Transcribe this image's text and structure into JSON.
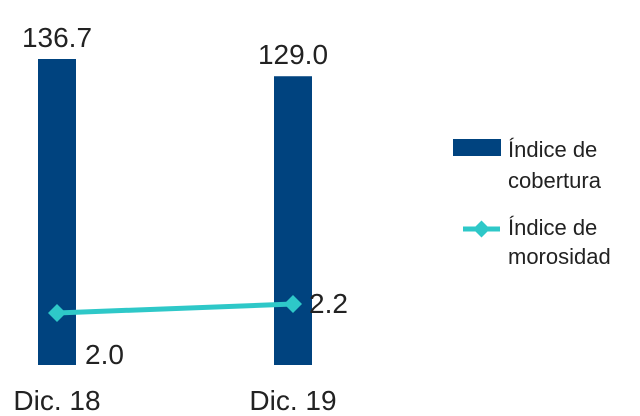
{
  "chart_data": {
    "type": "bar",
    "categories": [
      "Dic. 18",
      "Dic. 19"
    ],
    "series": [
      {
        "name": "Índice de cobertura",
        "kind": "bar",
        "values": [
          136.7,
          129.0
        ],
        "labels": [
          "136.7",
          "129.0"
        ],
        "color": "#00437F"
      },
      {
        "name": "Índice de morosidad",
        "kind": "line",
        "values": [
          2.0,
          2.2
        ],
        "labels": [
          "2.0",
          "2.2"
        ],
        "color": "#2EC8C8"
      }
    ],
    "legend": {
      "position": "right",
      "entries": [
        {
          "lines": [
            "Índice de",
            "cobertura"
          ]
        },
        {
          "lines": [
            "Índice de",
            "morosidad"
          ]
        }
      ]
    },
    "axes": "none",
    "grid": false
  }
}
